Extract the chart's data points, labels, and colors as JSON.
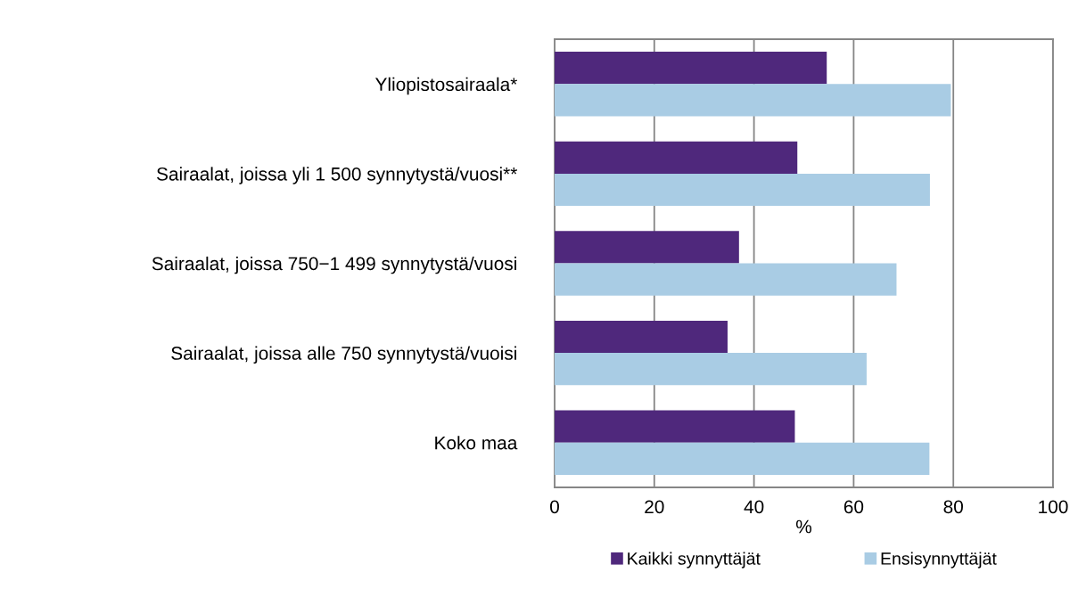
{
  "chart_data": {
    "type": "bar",
    "orientation": "horizontal",
    "xlabel": "%",
    "categories": [
      "Yliopistosairaala*",
      "Sairaalat, joissa yli 1 500 synnytystä/vuosi**",
      "Sairaalat, joissa 750−1 499 synnytystä/vuosi",
      "Sairaalat, joissa alle 750 synnytystä/vuoisi",
      "Koko maa"
    ],
    "series": [
      {
        "name": "Kaikki synnyttäjät",
        "color": "#4f287c",
        "values": [
          54.6,
          48.7,
          37.0,
          34.7,
          48.2
        ]
      },
      {
        "name": "Ensisynnyttäjät",
        "color": "#a9cce4",
        "values": [
          79.5,
          75.3,
          68.6,
          62.6,
          75.2
        ]
      }
    ],
    "xlim": [
      0,
      100
    ],
    "xticks": [
      0,
      20,
      40,
      60,
      80,
      100
    ],
    "grid": "x",
    "legend": "bottom"
  }
}
